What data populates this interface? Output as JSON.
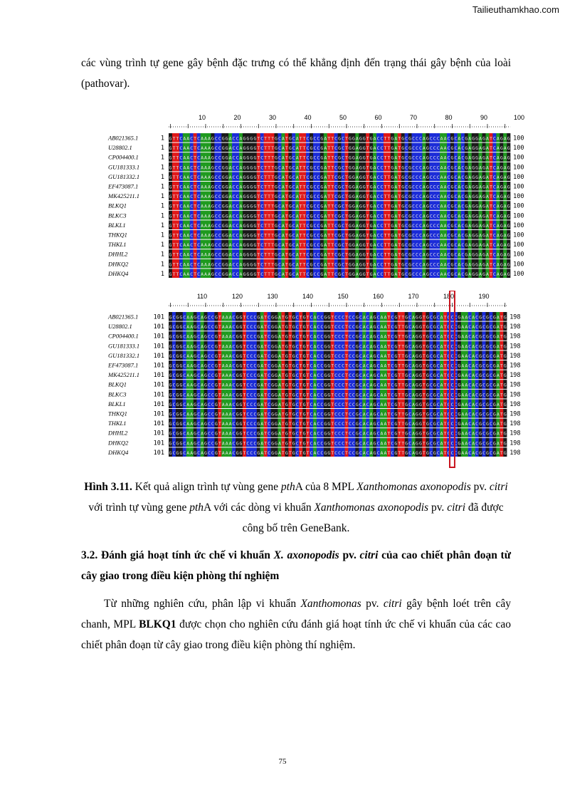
{
  "watermark": "Tailieuthamkhao.com",
  "intro_text": "các vùng trình tự gene gây bệnh đặc trưng có thể khẳng định đến trạng thái gây bệnh của loài (pathovar).",
  "alignment": {
    "colors": {
      "A": "#1f9a1f",
      "C": "#1a2bd8",
      "G": "#1a1a1a",
      "T": "#e01818"
    },
    "sequence_names": [
      "AB021365.1",
      "U28802.1",
      "CP004400.1",
      "GU181333.1",
      "GU181332.1",
      "EF473087.1",
      "MK425211.1",
      "BLKQ1",
      "BLKC3",
      "BLKL1",
      "THKQ1",
      "THKL1",
      "DHHL2",
      "DHKQ2",
      "DHKQ4"
    ],
    "panel1": {
      "ruler": [
        "10",
        "20",
        "30",
        "40",
        "50",
        "60",
        "70",
        "80",
        "90",
        "100"
      ],
      "start": "1",
      "end": "100",
      "sequence": "GTTCAACTCAAAGCCGGACCAGGGGTCTTTGCATGCATTCGCCGATTCGCTGGAGGTGACCTTGATGCGCCCAGCCCAACGCACGAGGAGATCAGAG"
    },
    "panel2": {
      "ruler": [
        "110",
        "120",
        "130",
        "140",
        "150",
        "160",
        "170",
        "180",
        "190"
      ],
      "start": "101",
      "end": "198",
      "sequence": "GCGGCAAGCAGCCGTAAACGGTCCCGATCGGATGTGCTGTCACCGGTCCCTCCGCACAGCAATCGTTGCAGGTGCGCATCCCGAACACGCGCGATG"
    }
  },
  "caption": {
    "label": "Hình 3.11.",
    "t1": " Kết quả align trình tự vùng gene ",
    "t2": "pth",
    "t3": "A của 8 MPL ",
    "t4": "Xanthomonas axonopodis",
    "t5": " pv. ",
    "t6": "citri",
    "t7": " với trình tự vùng gene ",
    "t8": "pth",
    "t9": "A  với  các dòng vi khuẩn ",
    "t10": "Xanthomonas axonopodis",
    "t11": " pv. ",
    "t12": "citri",
    "t13": " đã được công bố trên GeneBank."
  },
  "section": {
    "h1": "3.2. Đánh giá hoạt tính ức chế vi khuẩn ",
    "h2": "X. axonopodis",
    "h3": " pv. ",
    "h4": "citri",
    "h5": " của cao chiết phân đoạn từ cây giao trong điều kiện phòng thí nghiệm"
  },
  "body": {
    "b1": "Từ những nghiên cứu, phân lập vi khuẩn ",
    "b2": "Xanthomonas",
    "b3": " pv. ",
    "b4": "citri",
    "b5": " gây bệnh loét trên cây chanh, MPL ",
    "b6": "BLKQ1",
    "b7": " được chọn cho nghiên cứu đánh giá hoạt tính ức chế vi khuẩn của các cao chiết phân đoạn từ cây giao trong điều kiện phòng thí nghiệm."
  },
  "page_number": "75"
}
